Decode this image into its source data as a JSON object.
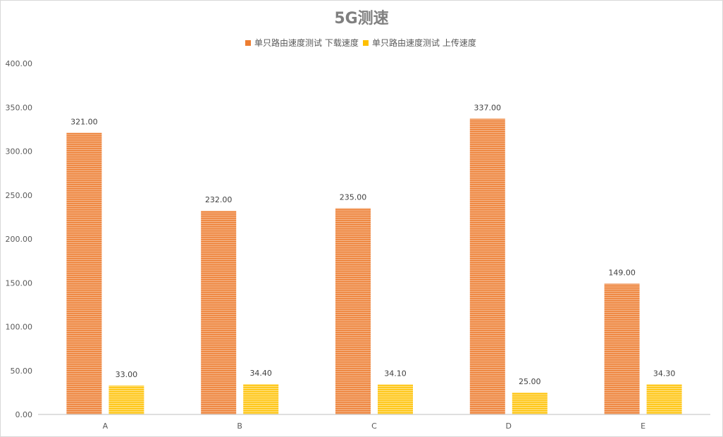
{
  "chart_data": {
    "type": "bar",
    "title": "5G测速",
    "categories": [
      "A",
      "B",
      "C",
      "D",
      "E"
    ],
    "series": [
      {
        "name": "单只路由速度测试 下载速度",
        "values": [
          321.0,
          232.0,
          235.0,
          337.0,
          149.0
        ],
        "color": "#ED7D31"
      },
      {
        "name": "单只路由速度测试 上传速度",
        "values": [
          33.0,
          34.4,
          34.1,
          25.0,
          34.3
        ],
        "color": "#FFC000"
      }
    ],
    "ylim": [
      0,
      400
    ],
    "yticks": [
      "0.00",
      "50.00",
      "100.00",
      "150.00",
      "200.00",
      "250.00",
      "300.00",
      "350.00",
      "400.00"
    ],
    "data_labels": true,
    "legend_position": "top",
    "grid": false
  }
}
